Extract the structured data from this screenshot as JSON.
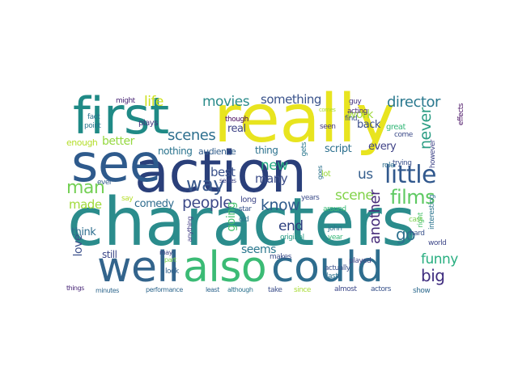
{
  "wordcloud": {
    "words": [
      {
        "text": "characters",
        "color": "#2b8c8c"
      },
      {
        "text": "action",
        "color": "#2a3f7a"
      },
      {
        "text": "really",
        "color": "#e8e41f"
      },
      {
        "text": "first",
        "color": "#1f8a86"
      },
      {
        "text": "see",
        "color": "#2e5a8c"
      },
      {
        "text": "well",
        "color": "#33648c"
      },
      {
        "text": "also",
        "color": "#3bbb75"
      },
      {
        "text": "could",
        "color": "#2e6d8e"
      },
      {
        "text": "little",
        "color": "#31588d"
      },
      {
        "text": "films",
        "color": "#5ec962"
      },
      {
        "text": "way",
        "color": "#3a5a8d"
      },
      {
        "text": "man",
        "color": "#74d055"
      },
      {
        "text": "people",
        "color": "#3e4a89"
      },
      {
        "text": "know",
        "color": "#2f5b8c"
      },
      {
        "text": "scene",
        "color": "#83d34b"
      },
      {
        "text": "director",
        "color": "#2a788e"
      },
      {
        "text": "scenes",
        "color": "#2d6f8e"
      },
      {
        "text": "movies",
        "color": "#2a8b8a"
      },
      {
        "text": "life",
        "color": "#cde11d"
      },
      {
        "text": "something",
        "color": "#3a538b"
      },
      {
        "text": "new",
        "color": "#25ab82"
      },
      {
        "text": "end",
        "color": "#2c3f7e"
      },
      {
        "text": "never",
        "color": "#2c9d84"
      },
      {
        "text": "funny",
        "color": "#28ae80"
      },
      {
        "text": "big",
        "color": "#3f2d7f"
      },
      {
        "text": "another",
        "color": "#472c7a"
      },
      {
        "text": "go",
        "color": "#2d708e"
      },
      {
        "text": "us",
        "color": "#355e8d"
      },
      {
        "text": "best",
        "color": "#3b528b"
      },
      {
        "text": "many",
        "color": "#3d4e8a"
      },
      {
        "text": "made",
        "color": "#a0da39"
      },
      {
        "text": "comedy",
        "color": "#2f6c8e"
      },
      {
        "text": "better",
        "color": "#95d840"
      },
      {
        "text": "work",
        "color": "#9fda3a"
      },
      {
        "text": "script",
        "color": "#2d708e"
      },
      {
        "text": "every",
        "color": "#404387"
      },
      {
        "text": "back",
        "color": "#3c4f8a"
      },
      {
        "text": "love",
        "color": "#3c508b"
      },
      {
        "text": "think",
        "color": "#2e6e8e"
      },
      {
        "text": "seems",
        "color": "#2a778e"
      },
      {
        "text": "going",
        "color": "#46c06f"
      },
      {
        "text": "still",
        "color": "#3e4989"
      },
      {
        "text": "nothing",
        "color": "#2b748e"
      },
      {
        "text": "audience",
        "color": "#34608d"
      },
      {
        "text": "real",
        "color": "#404688"
      },
      {
        "text": "thing",
        "color": "#2c728e"
      },
      {
        "text": "enough",
        "color": "#b5de2b"
      },
      {
        "text": "plays",
        "color": "#453781"
      },
      {
        "text": "might",
        "color": "#482475"
      },
      {
        "text": "fact",
        "color": "#2c728e"
      },
      {
        "text": "point",
        "color": "#2a788e"
      },
      {
        "text": "though",
        "color": "#46085c"
      },
      {
        "text": "guy",
        "color": "#46337e"
      },
      {
        "text": "find",
        "color": "#3b528b"
      },
      {
        "text": "seen",
        "color": "#453882"
      },
      {
        "text": "great",
        "color": "#35b779"
      },
      {
        "text": "acting",
        "color": "#482878"
      },
      {
        "text": "come",
        "color": "#3e4c8a"
      },
      {
        "text": "comes",
        "color": "#addc30"
      },
      {
        "text": "effects",
        "color": "#471063"
      },
      {
        "text": "however",
        "color": "#404588"
      },
      {
        "text": "trying",
        "color": "#3b518b"
      },
      {
        "text": "role",
        "color": "#2e6f8e"
      },
      {
        "text": "right",
        "color": "#4ac16d"
      },
      {
        "text": "cast",
        "color": "#7ad151"
      },
      {
        "text": "world",
        "color": "#3f4889"
      },
      {
        "text": "interesting",
        "color": "#2b748e"
      },
      {
        "text": "hard",
        "color": "#3b528b"
      },
      {
        "text": "gets",
        "color": "#2a778e"
      },
      {
        "text": "goes",
        "color": "#2c728e"
      },
      {
        "text": "series",
        "color": "#404688"
      },
      {
        "text": "lot",
        "color": "#9bd93c"
      },
      {
        "text": "around",
        "color": "#3bbb75"
      },
      {
        "text": "ever",
        "color": "#355f8d"
      },
      {
        "text": "say",
        "color": "#b5de2b"
      },
      {
        "text": "long",
        "color": "#3f4889"
      },
      {
        "text": "star",
        "color": "#39568c"
      },
      {
        "text": "years",
        "color": "#3d4d8a"
      },
      {
        "text": "john",
        "color": "#2c728e"
      },
      {
        "text": "year",
        "color": "#37b878"
      },
      {
        "text": "original",
        "color": "#2c9c86"
      },
      {
        "text": "old",
        "color": "#2c728e"
      },
      {
        "text": "makes",
        "color": "#3d4e8a"
      },
      {
        "text": "played",
        "color": "#404688"
      },
      {
        "text": "anything",
        "color": "#433e85"
      },
      {
        "text": "may",
        "color": "#414487"
      },
      {
        "text": "part",
        "color": "#7ad151"
      },
      {
        "text": "actually",
        "color": "#3b528b"
      },
      {
        "text": "last",
        "color": "#2c728e"
      },
      {
        "text": "look",
        "color": "#33628d"
      },
      {
        "text": "things",
        "color": "#482677"
      },
      {
        "text": "minutes",
        "color": "#30688e"
      },
      {
        "text": "performance",
        "color": "#30688e"
      },
      {
        "text": "least",
        "color": "#31668e"
      },
      {
        "text": "although",
        "color": "#2c728e"
      },
      {
        "text": "take",
        "color": "#3c4f8a"
      },
      {
        "text": "since",
        "color": "#a8db34"
      },
      {
        "text": "almost",
        "color": "#3e4989"
      },
      {
        "text": "actors",
        "color": "#3a538b"
      },
      {
        "text": "show",
        "color": "#2f6b8e"
      }
    ]
  }
}
